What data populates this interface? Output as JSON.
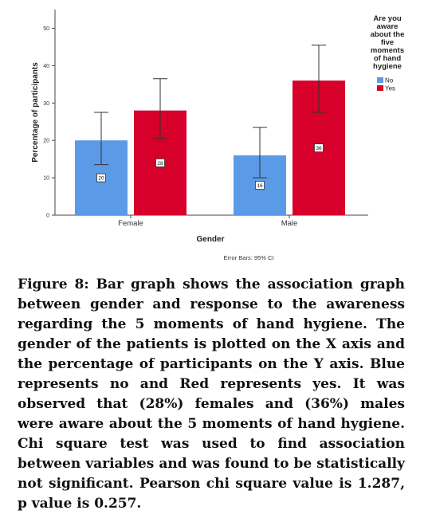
{
  "chart_data": {
    "type": "bar",
    "xlabel": "Gender",
    "ylabel": "Percentage of participants",
    "ylim": [
      0,
      55
    ],
    "yticks": [
      0,
      10,
      20,
      30,
      40,
      50
    ],
    "categories": [
      "Female",
      "Male"
    ],
    "series": [
      {
        "name": "No",
        "color": "#5b9ae6",
        "values": [
          20,
          16
        ],
        "labels": [
          "20",
          "16"
        ],
        "ci_low": [
          13.5,
          10
        ],
        "ci_high": [
          27.5,
          23.5
        ]
      },
      {
        "name": "Yes",
        "color": "#d6002a",
        "values": [
          28,
          36
        ],
        "labels": [
          "28",
          "36"
        ],
        "ci_low": [
          20.5,
          27.5
        ],
        "ci_high": [
          36.5,
          45.5
        ]
      }
    ],
    "legend_title": "Are you aware about the five moments of hand hygiene",
    "legend_title_lines": [
      "Are you",
      "aware",
      "about the",
      "five",
      "moments",
      "of hand",
      "hygiene"
    ],
    "legend_position": "top-right",
    "footnote": "Error Bars: 95% CI",
    "grid": false
  },
  "caption": "Figure 8: Bar graph shows the association graph between gender and response to the awareness regarding the 5 moments of hand hygiene. The gender of the patients is plotted on the X axis and the percentage of participants on the Y axis. Blue represents no and Red represents yes. It was observed that (28%) females and (36%) males were aware about the 5 moments of hand hygiene. Chi square test was used to find association between variables and was found to be statistically not significant. Pearson chi square value is 1.287, p value is 0.257."
}
